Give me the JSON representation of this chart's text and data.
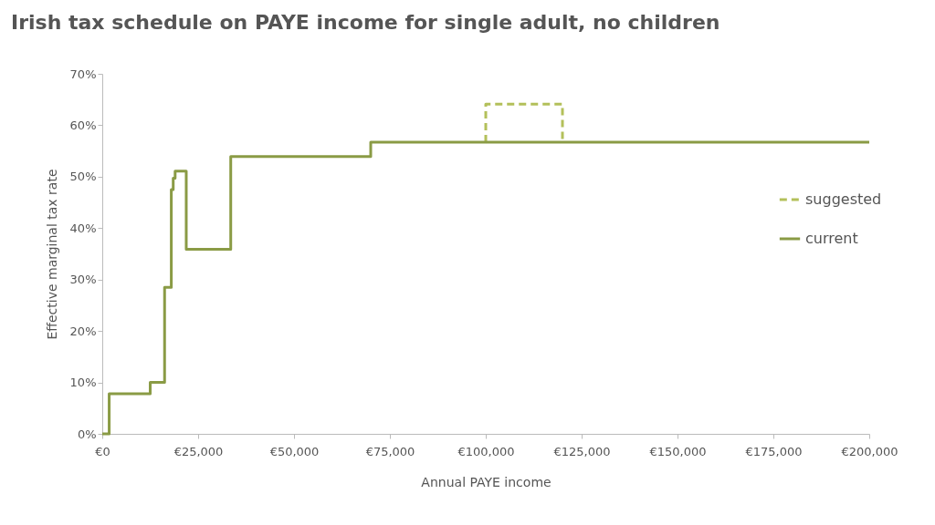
{
  "chart_data": {
    "type": "step",
    "title": "Irish tax schedule on PAYE income for single adult, no children",
    "xlabel": "Annual PAYE income",
    "ylabel": "Effective marginal tax rate",
    "xlim": [
      0,
      200000
    ],
    "xticks": [
      {
        "value": 0,
        "label": "€0"
      },
      {
        "value": 25000,
        "label": "€25,000"
      },
      {
        "value": 50000,
        "label": "€50,000"
      },
      {
        "value": 75000,
        "label": "€75,000"
      },
      {
        "value": 100000,
        "label": "€100,000"
      },
      {
        "value": 125000,
        "label": "€125,000"
      },
      {
        "value": 150000,
        "label": "€150,000"
      },
      {
        "value": 175000,
        "label": "€175,000"
      },
      {
        "value": 200000,
        "label": "€200,000"
      }
    ],
    "ylim": [
      0,
      70
    ],
    "yticks": [
      {
        "value": 0,
        "label": "0%"
      },
      {
        "value": 10,
        "label": "10%"
      },
      {
        "value": 20,
        "label": "20%"
      },
      {
        "value": 30,
        "label": "30%"
      },
      {
        "value": 40,
        "label": "40%"
      },
      {
        "value": 50,
        "label": "50%"
      },
      {
        "value": 60,
        "label": "60%"
      },
      {
        "value": 70,
        "label": "70%"
      }
    ],
    "grid": false,
    "legend": "right",
    "series": [
      {
        "name": "suggested",
        "color": "#b3c05a",
        "line_style": "dashed",
        "x": [
          100000,
          100000,
          120000
        ],
        "values": [
          56.7,
          64.1,
          56.7
        ]
      },
      {
        "name": "current",
        "color": "#8a9b45",
        "line_style": "solid",
        "x": [
          0,
          1800,
          12500,
          16250,
          18000,
          18500,
          19000,
          21900,
          33500,
          70000,
          200000
        ],
        "values": [
          0,
          7.8,
          10,
          28.5,
          47.5,
          49.7,
          51.1,
          35.9,
          53.9,
          56.7,
          56.7
        ]
      }
    ]
  }
}
